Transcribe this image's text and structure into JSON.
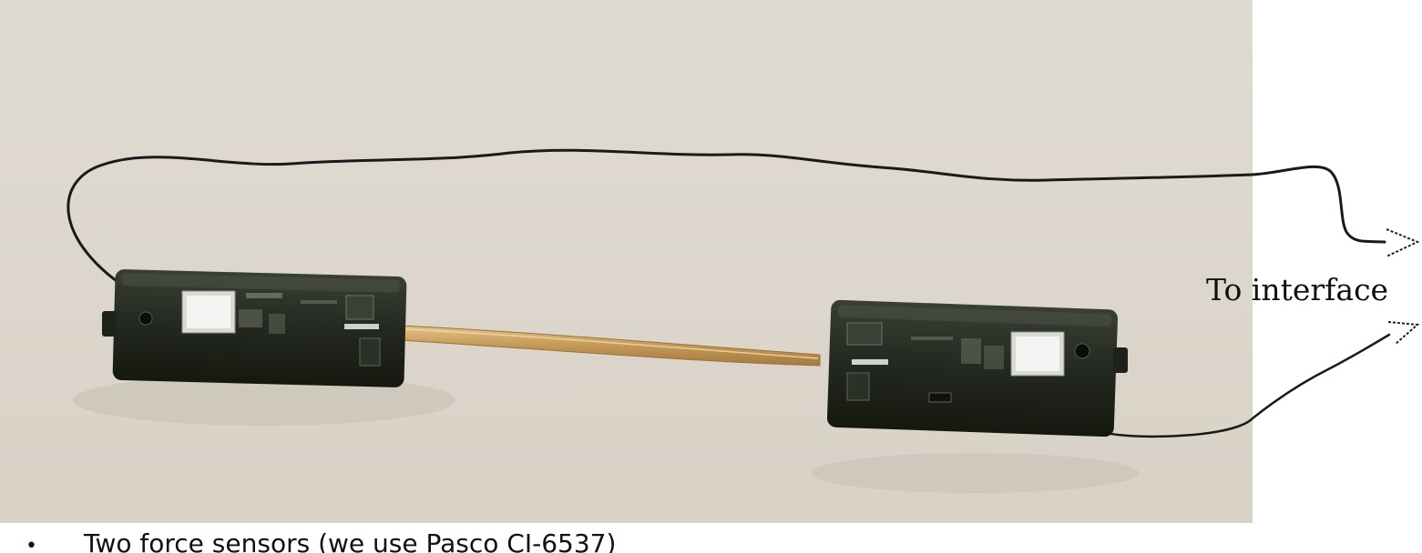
{
  "figure": {
    "annotation_label": "To interface"
  },
  "caption": {
    "bullet": "•",
    "text": "Two force sensors (we use Pasco CI-6537)"
  },
  "colors": {
    "background_surface": "#ddd8cf",
    "sensor_body": "#25291f",
    "ribbon": "#c9a56a",
    "wire": "#1a1a1a"
  }
}
